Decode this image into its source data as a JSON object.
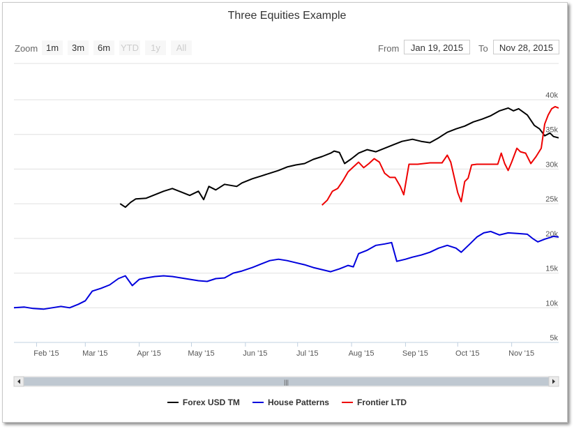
{
  "title": "Three Equities Example",
  "range_selector": {
    "zoom_label": "Zoom",
    "buttons": [
      {
        "label": "1m",
        "enabled": true
      },
      {
        "label": "3m",
        "enabled": true
      },
      {
        "label": "6m",
        "enabled": true
      },
      {
        "label": "YTD",
        "enabled": false
      },
      {
        "label": "1y",
        "enabled": false
      },
      {
        "label": "All",
        "enabled": false
      }
    ],
    "from_label": "From",
    "from_value": "Jan 19, 2015",
    "to_label": "To",
    "to_value": "Nov 28, 2015"
  },
  "colors": {
    "Forex USD TM": "#000000",
    "House Patterns": "#0000dd",
    "Frontier LTD": "#ee0000",
    "grid": "#e0e0e0",
    "scrollbar": "#bfc8d1",
    "scroll_track": "#f2f2f2"
  },
  "scrollbar": {
    "left_icon": "arrow-left-icon",
    "right_icon": "arrow-right-icon",
    "grip_icon": "grip-icon",
    "grip_label": "|||"
  },
  "chart_data": {
    "type": "line",
    "title": "Three Equities Example",
    "xlabel": "",
    "ylabel": "",
    "x_range": [
      "2015-01-19",
      "2015-11-28"
    ],
    "ylim": [
      5000,
      40000
    ],
    "x_ticks": [
      {
        "label": "Feb '15",
        "date": "2015-02-01"
      },
      {
        "label": "Mar '15",
        "date": "2015-03-01"
      },
      {
        "label": "Apr '15",
        "date": "2015-04-01"
      },
      {
        "label": "May '15",
        "date": "2015-05-01"
      },
      {
        "label": "Jun '15",
        "date": "2015-06-01"
      },
      {
        "label": "Jul '15",
        "date": "2015-07-01"
      },
      {
        "label": "Aug '15",
        "date": "2015-08-01"
      },
      {
        "label": "Sep '15",
        "date": "2015-09-01"
      },
      {
        "label": "Oct '15",
        "date": "2015-10-01"
      },
      {
        "label": "Nov '15",
        "date": "2015-11-01"
      }
    ],
    "y_ticks": [
      {
        "label": "5k",
        "value": 5000
      },
      {
        "label": "10k",
        "value": 10000
      },
      {
        "label": "15k",
        "value": 15000
      },
      {
        "label": "20k",
        "value": 20000
      },
      {
        "label": "25k",
        "value": 25000
      },
      {
        "label": "30k",
        "value": 30000
      },
      {
        "label": "35k",
        "value": 35000
      },
      {
        "label": "40k",
        "value": 40000
      }
    ],
    "grid": true,
    "legend_position": "bottom-center",
    "series": [
      {
        "name": "Forex USD TM",
        "points": [
          [
            "2015-03-21",
            25000
          ],
          [
            "2015-03-24",
            24500
          ],
          [
            "2015-03-27",
            25200
          ],
          [
            "2015-03-30",
            25700
          ],
          [
            "2015-04-05",
            25800
          ],
          [
            "2015-04-10",
            26300
          ],
          [
            "2015-04-15",
            26800
          ],
          [
            "2015-04-20",
            27200
          ],
          [
            "2015-04-25",
            26700
          ],
          [
            "2015-04-30",
            26200
          ],
          [
            "2015-05-05",
            26800
          ],
          [
            "2015-05-08",
            25600
          ],
          [
            "2015-05-11",
            27500
          ],
          [
            "2015-05-15",
            27000
          ],
          [
            "2015-05-20",
            27800
          ],
          [
            "2015-05-27",
            27500
          ],
          [
            "2015-05-30",
            28000
          ],
          [
            "2015-06-05",
            28600
          ],
          [
            "2015-06-10",
            29000
          ],
          [
            "2015-06-15",
            29400
          ],
          [
            "2015-06-20",
            29800
          ],
          [
            "2015-06-25",
            30300
          ],
          [
            "2015-06-30",
            30600
          ],
          [
            "2015-07-05",
            30800
          ],
          [
            "2015-07-10",
            31400
          ],
          [
            "2015-07-15",
            31800
          ],
          [
            "2015-07-20",
            32300
          ],
          [
            "2015-07-22",
            32600
          ],
          [
            "2015-07-25",
            32400
          ],
          [
            "2015-07-28",
            30800
          ],
          [
            "2015-08-01",
            31500
          ],
          [
            "2015-08-05",
            32300
          ],
          [
            "2015-08-10",
            32800
          ],
          [
            "2015-08-15",
            32500
          ],
          [
            "2015-08-20",
            33000
          ],
          [
            "2015-08-25",
            33500
          ],
          [
            "2015-08-30",
            34000
          ],
          [
            "2015-09-05",
            34300
          ],
          [
            "2015-09-10",
            34000
          ],
          [
            "2015-09-15",
            33800
          ],
          [
            "2015-09-20",
            34500
          ],
          [
            "2015-09-25",
            35300
          ],
          [
            "2015-09-30",
            35800
          ],
          [
            "2015-10-05",
            36200
          ],
          [
            "2015-10-10",
            36800
          ],
          [
            "2015-10-15",
            37200
          ],
          [
            "2015-10-20",
            37700
          ],
          [
            "2015-10-25",
            38400
          ],
          [
            "2015-10-30",
            38800
          ],
          [
            "2015-11-02",
            38400
          ],
          [
            "2015-11-05",
            38700
          ],
          [
            "2015-11-10",
            37800
          ],
          [
            "2015-11-14",
            36300
          ],
          [
            "2015-11-17",
            35800
          ],
          [
            "2015-11-20",
            34800
          ],
          [
            "2015-11-23",
            35200
          ],
          [
            "2015-11-25",
            34700
          ],
          [
            "2015-11-28",
            34500
          ]
        ]
      },
      {
        "name": "House Patterns",
        "points": [
          [
            "2015-01-19",
            10000
          ],
          [
            "2015-01-25",
            10100
          ],
          [
            "2015-01-30",
            9900
          ],
          [
            "2015-02-05",
            9800
          ],
          [
            "2015-02-10",
            10000
          ],
          [
            "2015-02-15",
            10200
          ],
          [
            "2015-02-20",
            10000
          ],
          [
            "2015-02-25",
            10500
          ],
          [
            "2015-03-01",
            11000
          ],
          [
            "2015-03-05",
            12400
          ],
          [
            "2015-03-10",
            12800
          ],
          [
            "2015-03-15",
            13300
          ],
          [
            "2015-03-20",
            14200
          ],
          [
            "2015-03-24",
            14600
          ],
          [
            "2015-03-28",
            13200
          ],
          [
            "2015-04-01",
            14100
          ],
          [
            "2015-04-05",
            14300
          ],
          [
            "2015-04-10",
            14500
          ],
          [
            "2015-04-15",
            14600
          ],
          [
            "2015-04-20",
            14500
          ],
          [
            "2015-04-25",
            14300
          ],
          [
            "2015-04-30",
            14100
          ],
          [
            "2015-05-05",
            13900
          ],
          [
            "2015-05-10",
            13800
          ],
          [
            "2015-05-15",
            14200
          ],
          [
            "2015-05-20",
            14300
          ],
          [
            "2015-05-25",
            15000
          ],
          [
            "2015-05-30",
            15300
          ],
          [
            "2015-06-05",
            15800
          ],
          [
            "2015-06-10",
            16300
          ],
          [
            "2015-06-15",
            16800
          ],
          [
            "2015-06-20",
            17000
          ],
          [
            "2015-06-25",
            16800
          ],
          [
            "2015-06-30",
            16500
          ],
          [
            "2015-07-05",
            16200
          ],
          [
            "2015-07-10",
            15800
          ],
          [
            "2015-07-15",
            15500
          ],
          [
            "2015-07-20",
            15200
          ],
          [
            "2015-07-25",
            15600
          ],
          [
            "2015-07-30",
            16100
          ],
          [
            "2015-08-02",
            15900
          ],
          [
            "2015-08-05",
            17800
          ],
          [
            "2015-08-10",
            18300
          ],
          [
            "2015-08-15",
            19000
          ],
          [
            "2015-08-20",
            19200
          ],
          [
            "2015-08-24",
            19400
          ],
          [
            "2015-08-27",
            16700
          ],
          [
            "2015-09-01",
            17000
          ],
          [
            "2015-09-05",
            17300
          ],
          [
            "2015-09-10",
            17600
          ],
          [
            "2015-09-15",
            18000
          ],
          [
            "2015-09-20",
            18600
          ],
          [
            "2015-09-25",
            19000
          ],
          [
            "2015-09-30",
            18600
          ],
          [
            "2015-10-03",
            18000
          ],
          [
            "2015-10-08",
            19200
          ],
          [
            "2015-10-12",
            20200
          ],
          [
            "2015-10-16",
            20800
          ],
          [
            "2015-10-20",
            21000
          ],
          [
            "2015-10-25",
            20500
          ],
          [
            "2015-10-30",
            20800
          ],
          [
            "2015-11-05",
            20700
          ],
          [
            "2015-11-10",
            20600
          ],
          [
            "2015-11-13",
            20000
          ],
          [
            "2015-11-16",
            19500
          ],
          [
            "2015-11-20",
            19900
          ],
          [
            "2015-11-25",
            20300
          ],
          [
            "2015-11-28",
            20200
          ]
        ]
      },
      {
        "name": "Frontier LTD",
        "points": [
          [
            "2015-07-15",
            24800
          ],
          [
            "2015-07-18",
            25500
          ],
          [
            "2015-07-21",
            26800
          ],
          [
            "2015-07-24",
            27200
          ],
          [
            "2015-07-27",
            28300
          ],
          [
            "2015-07-30",
            29600
          ],
          [
            "2015-08-02",
            30300
          ],
          [
            "2015-08-05",
            31000
          ],
          [
            "2015-08-08",
            30200
          ],
          [
            "2015-08-11",
            30800
          ],
          [
            "2015-08-14",
            31500
          ],
          [
            "2015-08-17",
            31000
          ],
          [
            "2015-08-20",
            29400
          ],
          [
            "2015-08-23",
            28800
          ],
          [
            "2015-08-26",
            28800
          ],
          [
            "2015-08-29",
            27500
          ],
          [
            "2015-08-31",
            26300
          ],
          [
            "2015-09-03",
            30700
          ],
          [
            "2015-09-08",
            30700
          ],
          [
            "2015-09-15",
            30900
          ],
          [
            "2015-09-22",
            30900
          ],
          [
            "2015-09-25",
            32000
          ],
          [
            "2015-09-27",
            31000
          ],
          [
            "2015-09-29",
            28800
          ],
          [
            "2015-10-01",
            26600
          ],
          [
            "2015-10-03",
            25300
          ],
          [
            "2015-10-05",
            28200
          ],
          [
            "2015-10-07",
            28700
          ],
          [
            "2015-10-09",
            30600
          ],
          [
            "2015-10-12",
            30700
          ],
          [
            "2015-10-18",
            30700
          ],
          [
            "2015-10-24",
            30700
          ],
          [
            "2015-10-26",
            32300
          ],
          [
            "2015-10-28",
            30800
          ],
          [
            "2015-10-30",
            29800
          ],
          [
            "2015-11-01",
            31000
          ],
          [
            "2015-11-04",
            33000
          ],
          [
            "2015-11-06",
            32500
          ],
          [
            "2015-11-09",
            32300
          ],
          [
            "2015-11-12",
            30800
          ],
          [
            "2015-11-15",
            31800
          ],
          [
            "2015-11-18",
            33000
          ],
          [
            "2015-11-20",
            36500
          ],
          [
            "2015-11-22",
            37800
          ],
          [
            "2015-11-24",
            38700
          ],
          [
            "2015-11-26",
            39000
          ],
          [
            "2015-11-28",
            38800
          ]
        ]
      }
    ]
  }
}
